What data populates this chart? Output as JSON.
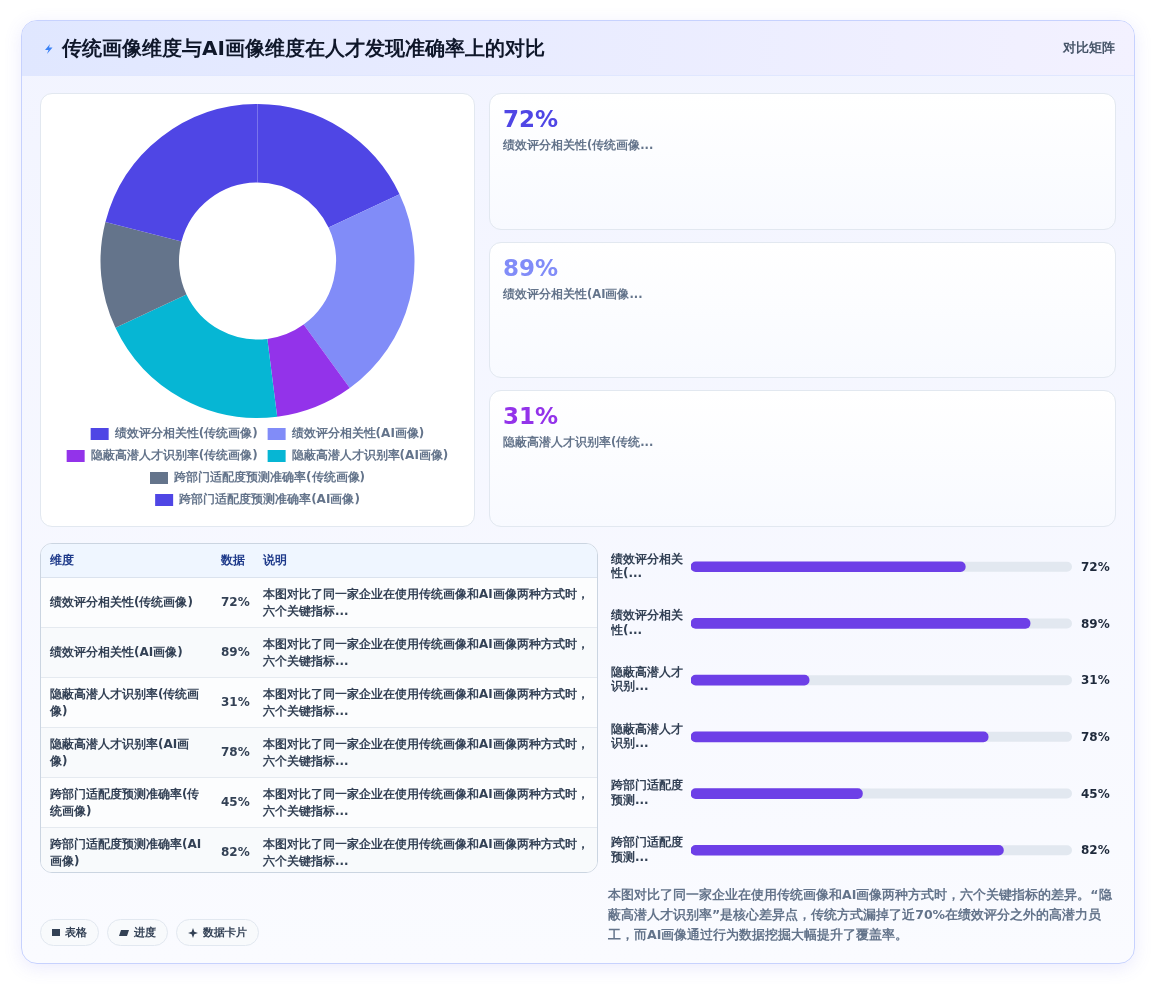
{
  "chart_data": [
    {
      "type": "donut",
      "title": "传统画像维度与AI画像维度在人才发现准确率上的对比",
      "categories": [
        "绩效评分相关性(传统画像)",
        "绩效评分相关性(AI画像)",
        "隐蔽高潜人才识别率(传统画像)",
        "隐蔽高潜人才识别率(AI画像)",
        "跨部门适配度预测准确率(传统画像)",
        "跨部门适配度预测准确率(AI画像)"
      ],
      "values": [
        18,
        22,
        8,
        20,
        11,
        21
      ],
      "colors": [
        "#4f46e5",
        "#818cf8",
        "#9333ea",
        "#06b6d4",
        "#64748b",
        "#4f46e5"
      ],
      "legend": "bottom"
    },
    {
      "type": "other",
      "subtitle": "对比矩阵",
      "annotations": [
        "72%",
        "绩效评分相关性(传统画像...",
        "89%",
        "绩效评分相关性(AI画像...",
        "31%",
        "隐蔽高潜人才识别率(传统..."
      ]
    },
    {
      "type": "other",
      "categories": [
        "维度",
        "数据",
        "说明"
      ],
      "cell_labels": [
        [
          "绩效评分相关性(传统画像)",
          "72%",
          "本图对比了同一家企业在使用传统画像和AI画像两种方式时，六个关键指标..."
        ],
        [
          "绩效评分相关性(AI画像)",
          "89%",
          "本图对比了同一家企业在使用传统画像和AI画像两种方式时，六个关键指标..."
        ],
        [
          "隐蔽高潜人才识别率(传统画像)",
          "31%",
          "本图对比了同一家企业在使用传统画像和AI画像两种方式时，六个关键指标..."
        ],
        [
          "隐蔽高潜人才识别率(AI画像)",
          "78%",
          "本图对比了同一家企业在使用传统画像和AI画像两种方式时，六个关键指标..."
        ],
        [
          "跨部门适配度预测准确率(传统画像)",
          "45%",
          "本图对比了同一家企业在使用传统画像和AI画像两种方式时，六个关键指标..."
        ],
        [
          "跨部门适配度预测准确率(AI画像)",
          "82%",
          "本图对比了同一家企业在使用传统画像和AI画像两种方式时，六个关键指标..."
        ]
      ],
      "annotations": [
        "表格",
        "进度",
        "数据卡片"
      ]
    },
    {
      "type": "bar",
      "orientation": "horizontal",
      "categories": [
        "绩效评分相关性(...",
        "绩效评分相关性(...",
        "隐蔽高潜人才识别...",
        "隐蔽高潜人才识别...",
        "跨部门适配度预测...",
        "跨部门适配度预测..."
      ],
      "values": [
        72,
        89,
        31,
        78,
        45,
        82
      ],
      "color": "#6d3fe7",
      "xlim": [
        0,
        100
      ],
      "value_labels": [
        "72%",
        "89%",
        "31%",
        "78%",
        "45%",
        "82%"
      ],
      "tick_labels": "y",
      "annotations": [
        "本图对比了同一家企业在使用传统画像和AI画像两种方式时，六个关键指标的差异。“隐蔽高潜人才识别率”是核心差异点，传统方式漏掉了近70%在绩效评分之外的高潜力员工，而AI画像通过行为数据挖掘大幅提升了覆盖率。"
      ]
    }
  ]
}
